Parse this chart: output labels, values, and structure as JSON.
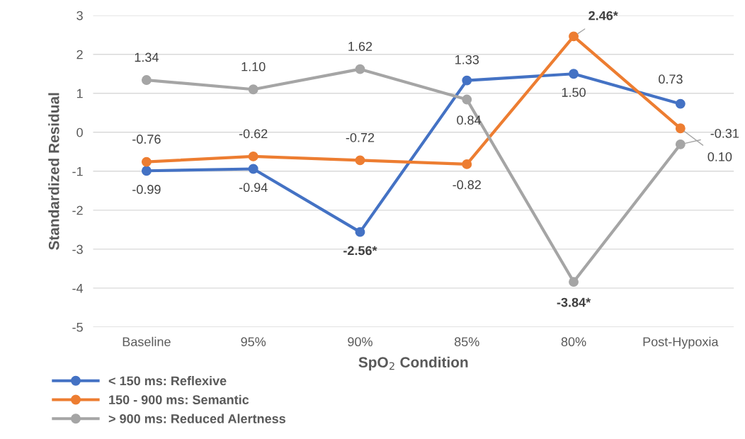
{
  "chart_data": {
    "type": "line",
    "xlabel": "SpO$_{2}$ Condition",
    "ylabel": "Standardized Residual",
    "categories": [
      "Baseline",
      "95%",
      "90%",
      "85%",
      "80%",
      "Post-Hypoxia"
    ],
    "series": [
      {
        "name": "< 150 ms: Reflexive",
        "color": "#4472c4",
        "values": [
          -0.99,
          -0.94,
          -2.56,
          1.33,
          1.5,
          0.73
        ],
        "value_labels": [
          "-0.99",
          "-0.94",
          "-2.56*",
          "1.33",
          "1.50",
          "0.73"
        ]
      },
      {
        "name": "150 - 900 ms: Semantic",
        "color": "#ed7d31",
        "values": [
          -0.76,
          -0.62,
          -0.72,
          -0.82,
          2.46,
          0.1
        ],
        "value_labels": [
          "-0.76",
          "-0.62",
          "-0.72",
          "-0.82",
          "2.46*",
          "0.10"
        ]
      },
      {
        "name": "> 900 ms: Reduced Alertness",
        "color": "#a5a5a5",
        "values": [
          1.34,
          1.1,
          1.62,
          0.84,
          -3.84,
          -0.31
        ],
        "value_labels": [
          "1.34",
          "1.10",
          "1.62",
          "0.84",
          "-3.84*",
          "-0.31"
        ]
      }
    ],
    "ylim": [
      -5,
      3
    ],
    "yticks": [
      -5,
      -4,
      -3,
      -2,
      -1,
      0,
      1,
      2,
      3
    ],
    "grid": "y",
    "legend": "bottom left",
    "marker": "circle",
    "line_style": "solid"
  }
}
